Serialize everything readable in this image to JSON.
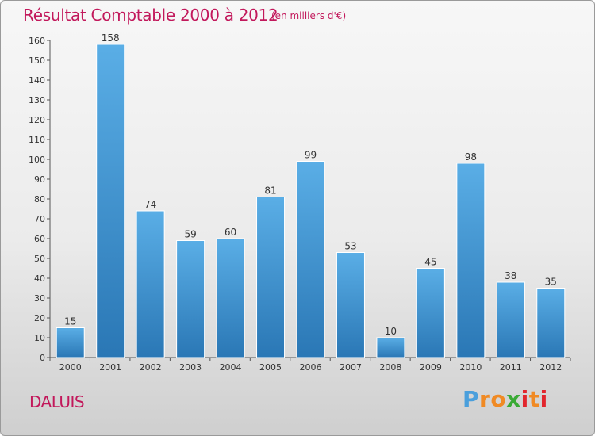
{
  "chart_data": {
    "type": "bar",
    "title": "Résultat Comptable 2000 à 2012",
    "subtitle": "(en milliers d'€)",
    "categories": [
      "2000",
      "2001",
      "2002",
      "2003",
      "2004",
      "2005",
      "2006",
      "2007",
      "2008",
      "2009",
      "2010",
      "2011",
      "2012"
    ],
    "values": [
      15,
      158,
      74,
      59,
      60,
      81,
      99,
      53,
      10,
      45,
      98,
      38,
      35
    ],
    "ylim": [
      0,
      160
    ],
    "yticks": [
      0,
      10,
      20,
      30,
      40,
      50,
      60,
      70,
      80,
      90,
      100,
      110,
      120,
      130,
      140,
      150,
      160
    ],
    "grid": false,
    "bar_color": "#4a9fdc",
    "bar_color_dark": "#2a77b5"
  },
  "footer": {
    "commune": "DALUIS",
    "logo": "Proxiti",
    "logo_letters": [
      "P",
      "r",
      "o",
      "x",
      "i",
      "t",
      "i"
    ],
    "logo_colors": [
      "#4a9fdc",
      "#f08a24",
      "#f08a24",
      "#3aaa35",
      "#e2262d",
      "#f08a24",
      "#e2262d"
    ]
  },
  "theme": {
    "accent": "#c2185b"
  }
}
